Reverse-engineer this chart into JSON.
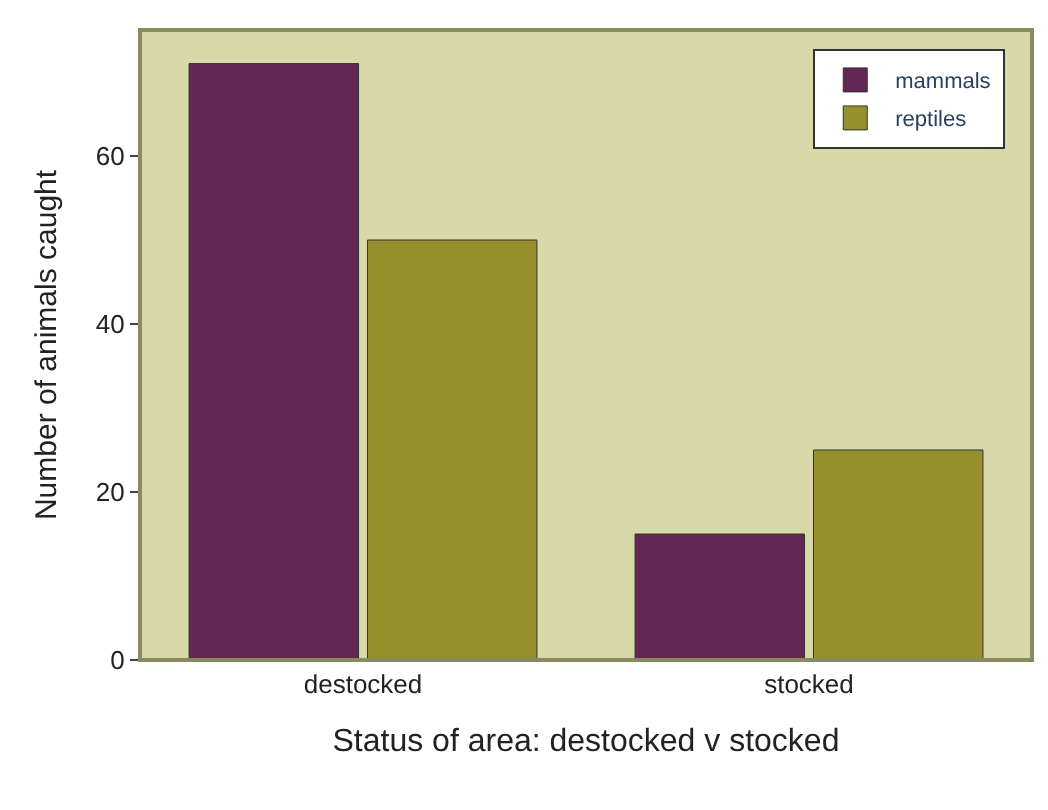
{
  "chart_data": {
    "type": "bar",
    "xlabel": "Status of area: destocked v stocked",
    "ylabel": "Number of animals caught",
    "categories": [
      "destocked",
      "stocked"
    ],
    "series": [
      {
        "name": "mammals",
        "color": "#632654",
        "values": [
          71,
          15
        ]
      },
      {
        "name": "reptiles",
        "color": "#968f2e",
        "values": [
          50,
          25
        ]
      }
    ],
    "ylim": [
      0,
      75
    ],
    "yticks": [
      0,
      20,
      40,
      60
    ],
    "grid": false,
    "legend": "top right"
  }
}
